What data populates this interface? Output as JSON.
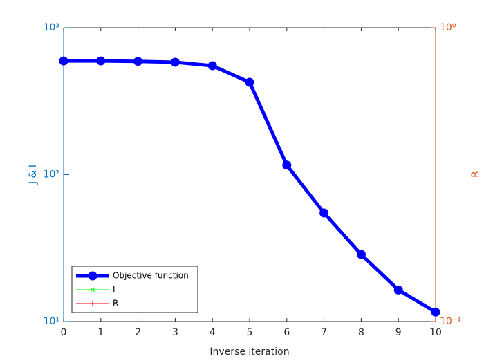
{
  "chart_data": {
    "type": "line",
    "x_label": "Inverse iteration",
    "y_label": "J & I",
    "y2_label": "R",
    "x": [
      0,
      1,
      2,
      3,
      4,
      5,
      6,
      7,
      8,
      9,
      10
    ],
    "series": [
      {
        "name": "Objective function",
        "color": "#0000ff",
        "values": [
          594,
          594,
          590,
          582,
          551,
          425,
          116,
          54.8,
          28.6,
          16.4,
          11.6
        ]
      },
      {
        "name": "I",
        "color": "#00ff00",
        "values": [
          null,
          null,
          null,
          null,
          null,
          null,
          null,
          null,
          null,
          null,
          null
        ]
      },
      {
        "name": "R",
        "color": "#ff0000",
        "axis": "y2",
        "values": [
          null,
          null,
          null,
          null,
          null,
          null,
          null,
          null,
          null,
          null,
          null
        ]
      }
    ],
    "xlim": [
      0,
      10
    ],
    "xticks": [
      0,
      1,
      2,
      3,
      4,
      5,
      6,
      7,
      8,
      9,
      10
    ],
    "ylim": [
      10,
      1000
    ],
    "yticks": [
      {
        "value": 10,
        "label": "10¹"
      },
      {
        "value": 100,
        "label": "10²"
      },
      {
        "value": 1000,
        "label": "10³"
      }
    ],
    "y2lim": [
      0.1,
      1
    ],
    "y2ticks": [
      {
        "value": 0.1,
        "label": "10⁻¹"
      },
      {
        "value": 1,
        "label": "10⁰"
      }
    ],
    "log_scale": true,
    "y_color": "#0072bd",
    "y2_color": "#d95319",
    "legend": "lower left"
  }
}
